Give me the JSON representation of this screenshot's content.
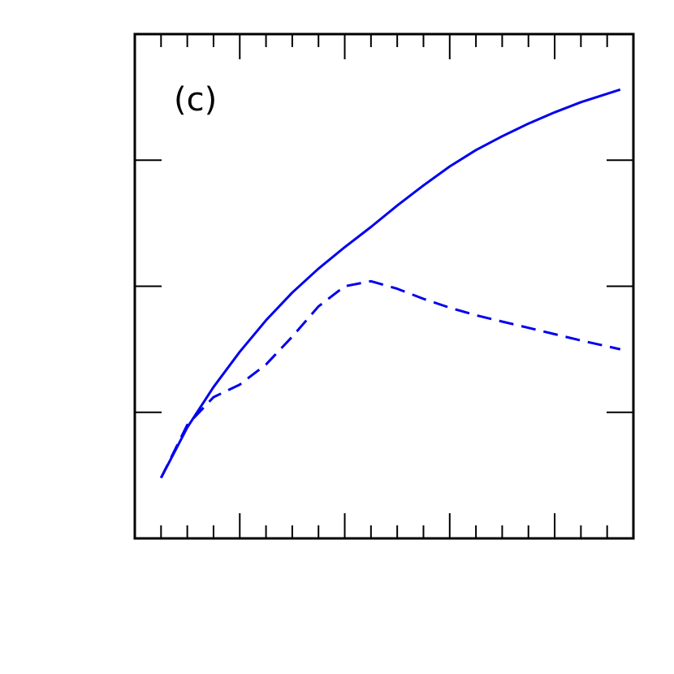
{
  "chart_data": {
    "type": "line",
    "panel_label": "(c)",
    "xlim": [
      0,
      19
    ],
    "ylim": [
      0,
      4
    ],
    "x_ticks_major": [
      0,
      4,
      8,
      12,
      16
    ],
    "x_ticks_minor": [
      1,
      2,
      3,
      5,
      6,
      7,
      9,
      10,
      11,
      13,
      14,
      15,
      17,
      18
    ],
    "y_ticks": [
      1,
      2,
      3
    ],
    "grid": false,
    "tick_labels": "none",
    "colors": {
      "series": "#0000ee",
      "axes": "#000000",
      "background": "#ffffff"
    },
    "series": [
      {
        "style": "solid",
        "x": [
          1,
          2,
          3,
          4,
          5,
          6,
          7,
          8,
          9,
          10,
          11,
          12,
          13,
          14,
          15,
          16,
          17,
          18.5
        ],
        "y": [
          0.48,
          0.88,
          1.2,
          1.48,
          1.73,
          1.95,
          2.14,
          2.31,
          2.47,
          2.64,
          2.8,
          2.95,
          3.08,
          3.19,
          3.29,
          3.38,
          3.46,
          3.56
        ]
      },
      {
        "style": "dashed",
        "x": [
          1,
          2,
          3,
          4,
          5,
          6,
          7,
          8,
          9,
          10,
          11,
          12,
          13,
          14,
          15,
          16,
          17,
          18.5
        ],
        "y": [
          0.48,
          0.9,
          1.12,
          1.22,
          1.38,
          1.6,
          1.84,
          2.0,
          2.04,
          1.98,
          1.9,
          1.83,
          1.77,
          1.72,
          1.67,
          1.62,
          1.57,
          1.5
        ]
      }
    ]
  }
}
